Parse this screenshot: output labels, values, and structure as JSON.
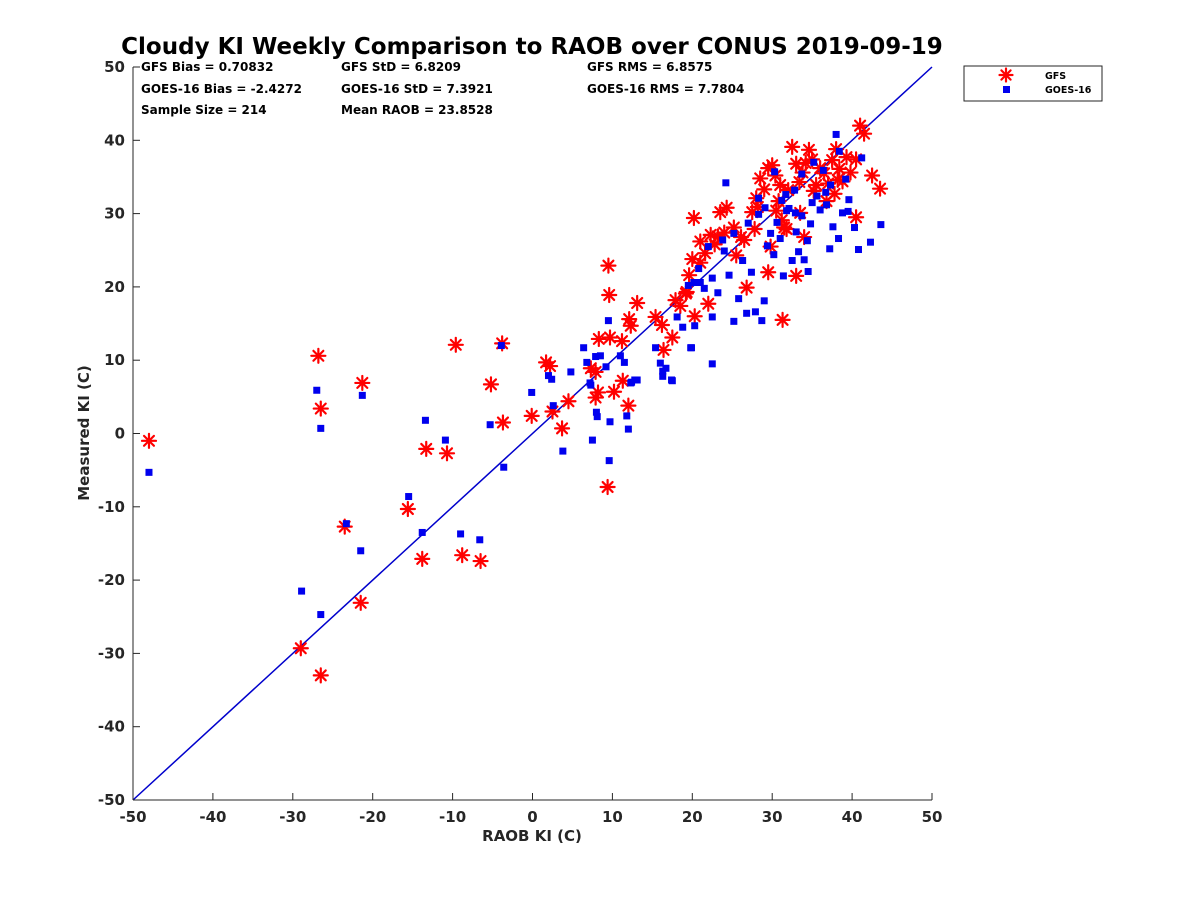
{
  "chart_data": {
    "type": "scatter",
    "title": "Cloudy KI Weekly Comparison to RAOB over CONUS 2019-09-19",
    "xlabel": "RAOB KI (C)",
    "ylabel": "Measured KI (C)",
    "xlim": [
      -50,
      50
    ],
    "ylim": [
      -50,
      50
    ],
    "xticks": [
      -50,
      -40,
      -30,
      -20,
      -10,
      0,
      10,
      20,
      30,
      40,
      50
    ],
    "yticks": [
      -50,
      -40,
      -30,
      -20,
      -10,
      0,
      10,
      20,
      30,
      40,
      50
    ],
    "grid": false,
    "legend_position": "outside top-right",
    "stats": [
      "GFS Bias = 0.70832",
      "GFS StD = 6.8209",
      "GFS RMS = 6.8575",
      "GOES-16 Bias = -2.4272",
      "GOES-16 StD = 7.3921",
      "GOES-16 RMS = 7.7804",
      "Sample Size = 214",
      "Mean RAOB = 23.8528"
    ],
    "reference_line": {
      "x": [
        -50,
        50
      ],
      "y": [
        -50,
        50
      ],
      "color": "#0000cc"
    },
    "series": [
      {
        "name": "GFS",
        "marker": "asterisk",
        "color": "#ff0000",
        "x": [
          -48,
          -26.8,
          -26.5,
          -21.3,
          -3.8,
          -5.2,
          -3.7,
          1.7,
          2.2,
          2.5,
          -0.1,
          4.5,
          3.7,
          7.9,
          8.2,
          9.5,
          9.6,
          9.7,
          9.4,
          7.3,
          7.9,
          8.3,
          10.2,
          11.2,
          12.1,
          12.3,
          11.3,
          12.0,
          13.1,
          15.4,
          16.2,
          16.4,
          17.5,
          17.9,
          18.5,
          19.2,
          19.6,
          20.0,
          20.2,
          21.0,
          21.6,
          22.3,
          22.8,
          23.5,
          24.3,
          25.2,
          26.1,
          26.8,
          27.5,
          28.0,
          28.5,
          29.0,
          29.5,
          30.0,
          30.4,
          30.8,
          31.2,
          31.5,
          32.0,
          32.5,
          33.0,
          33.4,
          33.8,
          34.2,
          34.6,
          35.0,
          35.5,
          36.0,
          36.5,
          37.0,
          37.5,
          38.0,
          38.4,
          38.8,
          39.3,
          39.8,
          40.5,
          41.0,
          41.5,
          42.5,
          43.5,
          40.5,
          31.3,
          33.0,
          29.5,
          27.8,
          26.5,
          25.5,
          24.0,
          23.2,
          22.0,
          21.0,
          20.3,
          19.3,
          30.5,
          31.8,
          33.5,
          35.2,
          36.8,
          38.2,
          29.8,
          28.2,
          31.0,
          34.0,
          37.8,
          -15.6,
          -13.3,
          -13.8,
          -10.7,
          -8.8,
          -6.5,
          -23.5,
          -21.5,
          -29.0,
          -26.5,
          -9.6
        ],
        "y": [
          -1.0,
          10.6,
          3.4,
          6.9,
          12.3,
          6.7,
          1.5,
          9.7,
          9.2,
          3.0,
          2.4,
          4.4,
          0.7,
          4.9,
          5.6,
          22.9,
          18.9,
          13.1,
          -7.3,
          8.9,
          8.4,
          12.9,
          5.7,
          12.6,
          15.6,
          14.7,
          7.2,
          3.8,
          17.8,
          15.9,
          14.8,
          11.4,
          13.1,
          18.2,
          17.4,
          19.1,
          21.6,
          23.8,
          29.4,
          26.2,
          24.6,
          27.1,
          25.8,
          30.2,
          30.8,
          28.1,
          26.8,
          19.9,
          30.2,
          32.1,
          34.8,
          33.3,
          36.2,
          36.6,
          35.2,
          31.7,
          29.1,
          28.1,
          33.2,
          39.1,
          36.8,
          34.3,
          35.6,
          36.9,
          38.7,
          37.4,
          33.9,
          36.2,
          35.5,
          34.1,
          37.3,
          38.8,
          36.1,
          34.4,
          37.7,
          35.6,
          29.5,
          42.0,
          40.9,
          35.2,
          33.4,
          37.4,
          15.5,
          21.5,
          22.0,
          27.9,
          26.4,
          24.3,
          27.4,
          26.9,
          17.7,
          23.3,
          16.0,
          19.3,
          30.4,
          27.9,
          30.1,
          33.1,
          31.7,
          34.6,
          25.5,
          30.9,
          33.9,
          26.8,
          32.7,
          -10.3,
          -2.1,
          -17.1,
          -2.7,
          -16.6,
          -17.4,
          -12.7,
          -23.1,
          -29.3,
          -33.0,
          12.1
        ],
        "n": 0
      },
      {
        "name": "GOES-16",
        "marker": "square",
        "color": "#0000ee",
        "x": [
          -48,
          -27.0,
          -26.5,
          -21.3,
          -13.4,
          -10.9,
          -5.3,
          -3.9,
          -3.6,
          -0.1,
          2.0,
          2.4,
          2.6,
          3.8,
          4.8,
          6.4,
          6.8,
          7.2,
          7.5,
          7.9,
          8.0,
          8.1,
          8.5,
          9.2,
          9.5,
          9.7,
          11.0,
          11.5,
          11.8,
          12.0,
          12.4,
          12.8,
          13.1,
          15.4,
          16.0,
          16.3,
          16.7,
          17.4,
          18.1,
          18.8,
          19.5,
          19.9,
          20.3,
          20.8,
          21.5,
          22.0,
          22.5,
          23.2,
          23.8,
          24.2,
          24.6,
          25.2,
          25.8,
          26.3,
          26.8,
          27.4,
          27.9,
          28.3,
          28.7,
          29.0,
          29.4,
          29.8,
          30.2,
          30.6,
          31.0,
          31.4,
          31.7,
          32.1,
          32.5,
          32.9,
          33.3,
          33.7,
          34.0,
          34.4,
          34.8,
          35.2,
          35.6,
          36.0,
          36.4,
          36.8,
          37.2,
          37.6,
          38.0,
          38.4,
          38.8,
          39.2,
          39.6,
          40.3,
          40.8,
          41.2,
          42.3,
          43.6,
          31.2,
          29.1,
          28.3,
          27.0,
          25.2,
          24.0,
          22.5,
          21.0,
          20.2,
          19.8,
          30.3,
          32.8,
          33.7,
          35.0,
          36.7,
          38.3,
          33.0,
          34.5,
          31.8,
          37.3,
          39.5,
          -15.5,
          -13.8,
          -9.0,
          -6.6,
          -23.3,
          -21.5,
          -28.9,
          -26.5,
          7.3,
          9.6,
          12.3,
          16.3,
          17.5,
          22.5
        ],
        "y": [
          -5.3,
          5.9,
          0.7,
          5.2,
          1.8,
          -0.9,
          1.2,
          12.0,
          -4.6,
          5.6,
          7.9,
          7.4,
          3.8,
          -2.4,
          8.4,
          11.7,
          9.7,
          6.9,
          -0.9,
          10.5,
          2.9,
          2.3,
          10.6,
          9.1,
          15.4,
          1.6,
          10.6,
          9.7,
          2.4,
          0.6,
          7.0,
          7.3,
          7.3,
          11.7,
          9.6,
          8.5,
          8.9,
          7.3,
          15.9,
          14.5,
          20.2,
          11.7,
          14.7,
          22.5,
          19.8,
          25.5,
          15.9,
          19.2,
          26.4,
          34.2,
          21.6,
          15.3,
          18.4,
          23.6,
          16.4,
          22.0,
          16.6,
          29.9,
          15.4,
          18.1,
          25.6,
          27.3,
          24.4,
          28.8,
          26.6,
          21.5,
          32.6,
          30.7,
          23.6,
          30.1,
          24.8,
          29.7,
          23.7,
          26.3,
          28.6,
          37.0,
          32.4,
          30.5,
          35.9,
          31.2,
          25.2,
          28.2,
          40.8,
          38.5,
          30.1,
          34.7,
          31.9,
          28.1,
          25.1,
          37.6,
          26.1,
          28.5,
          31.8,
          30.8,
          32.1,
          28.7,
          27.3,
          24.9,
          21.2,
          20.6,
          20.6,
          11.7,
          35.7,
          33.2,
          35.4,
          31.5,
          32.9,
          26.6,
          27.5,
          22.1,
          30.4,
          33.9,
          30.3,
          -8.6,
          -13.5,
          -13.7,
          -14.5,
          -12.3,
          -16.0,
          -21.5,
          -24.7,
          6.6,
          -3.7,
          6.9,
          7.8,
          7.2,
          9.5
        ]
      }
    ]
  }
}
